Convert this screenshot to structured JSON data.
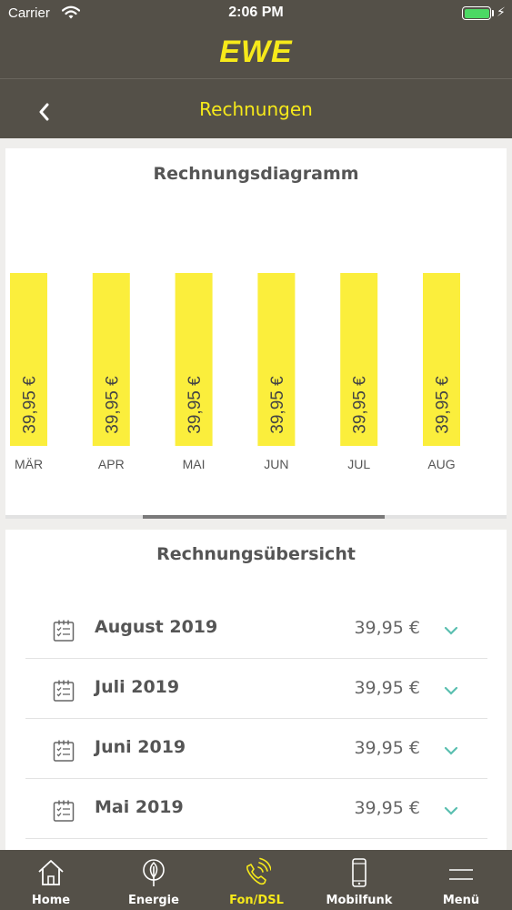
{
  "status_bar": {
    "carrier": "Carrier",
    "time": "2:06 PM"
  },
  "header": {
    "logo": "EWE",
    "title": "Rechnungen"
  },
  "colors": {
    "brand": "#545048",
    "accent": "#f6e91a",
    "bar": "#fbee3c",
    "chevron": "#5bbfb0"
  },
  "chart_section": {
    "title": "Rechnungsdiagramm",
    "scroll_position": 0.52
  },
  "chart_data": {
    "type": "bar",
    "categories": [
      "MÄR",
      "APR",
      "MAI",
      "JUN",
      "JUL",
      "AUG"
    ],
    "values": [
      39.95,
      39.95,
      39.95,
      39.95,
      39.95,
      39.95
    ],
    "labels": [
      "39,95 €",
      "39,95 €",
      "39,95 €",
      "39,95 €",
      "39,95 €",
      "39,95 €"
    ],
    "title": "Rechnungsdiagramm",
    "xlabel": "",
    "ylabel": "",
    "grid": false
  },
  "overview": {
    "title": "Rechnungsübersicht",
    "rows": [
      {
        "month": "August 2019",
        "amount": "39,95 €"
      },
      {
        "month": "Juli 2019",
        "amount": "39,95 €"
      },
      {
        "month": "Juni 2019",
        "amount": "39,95 €"
      },
      {
        "month": "Mai 2019",
        "amount": "39,95 €"
      }
    ]
  },
  "tabs": [
    {
      "label": "Home",
      "icon": "house-icon"
    },
    {
      "label": "Energie",
      "icon": "leaf-icon"
    },
    {
      "label": "Fon/DSL",
      "icon": "phone-icon",
      "active": true
    },
    {
      "label": "Mobilfunk",
      "icon": "smartphone-icon"
    },
    {
      "label": "Menü",
      "icon": "menu-icon"
    }
  ]
}
